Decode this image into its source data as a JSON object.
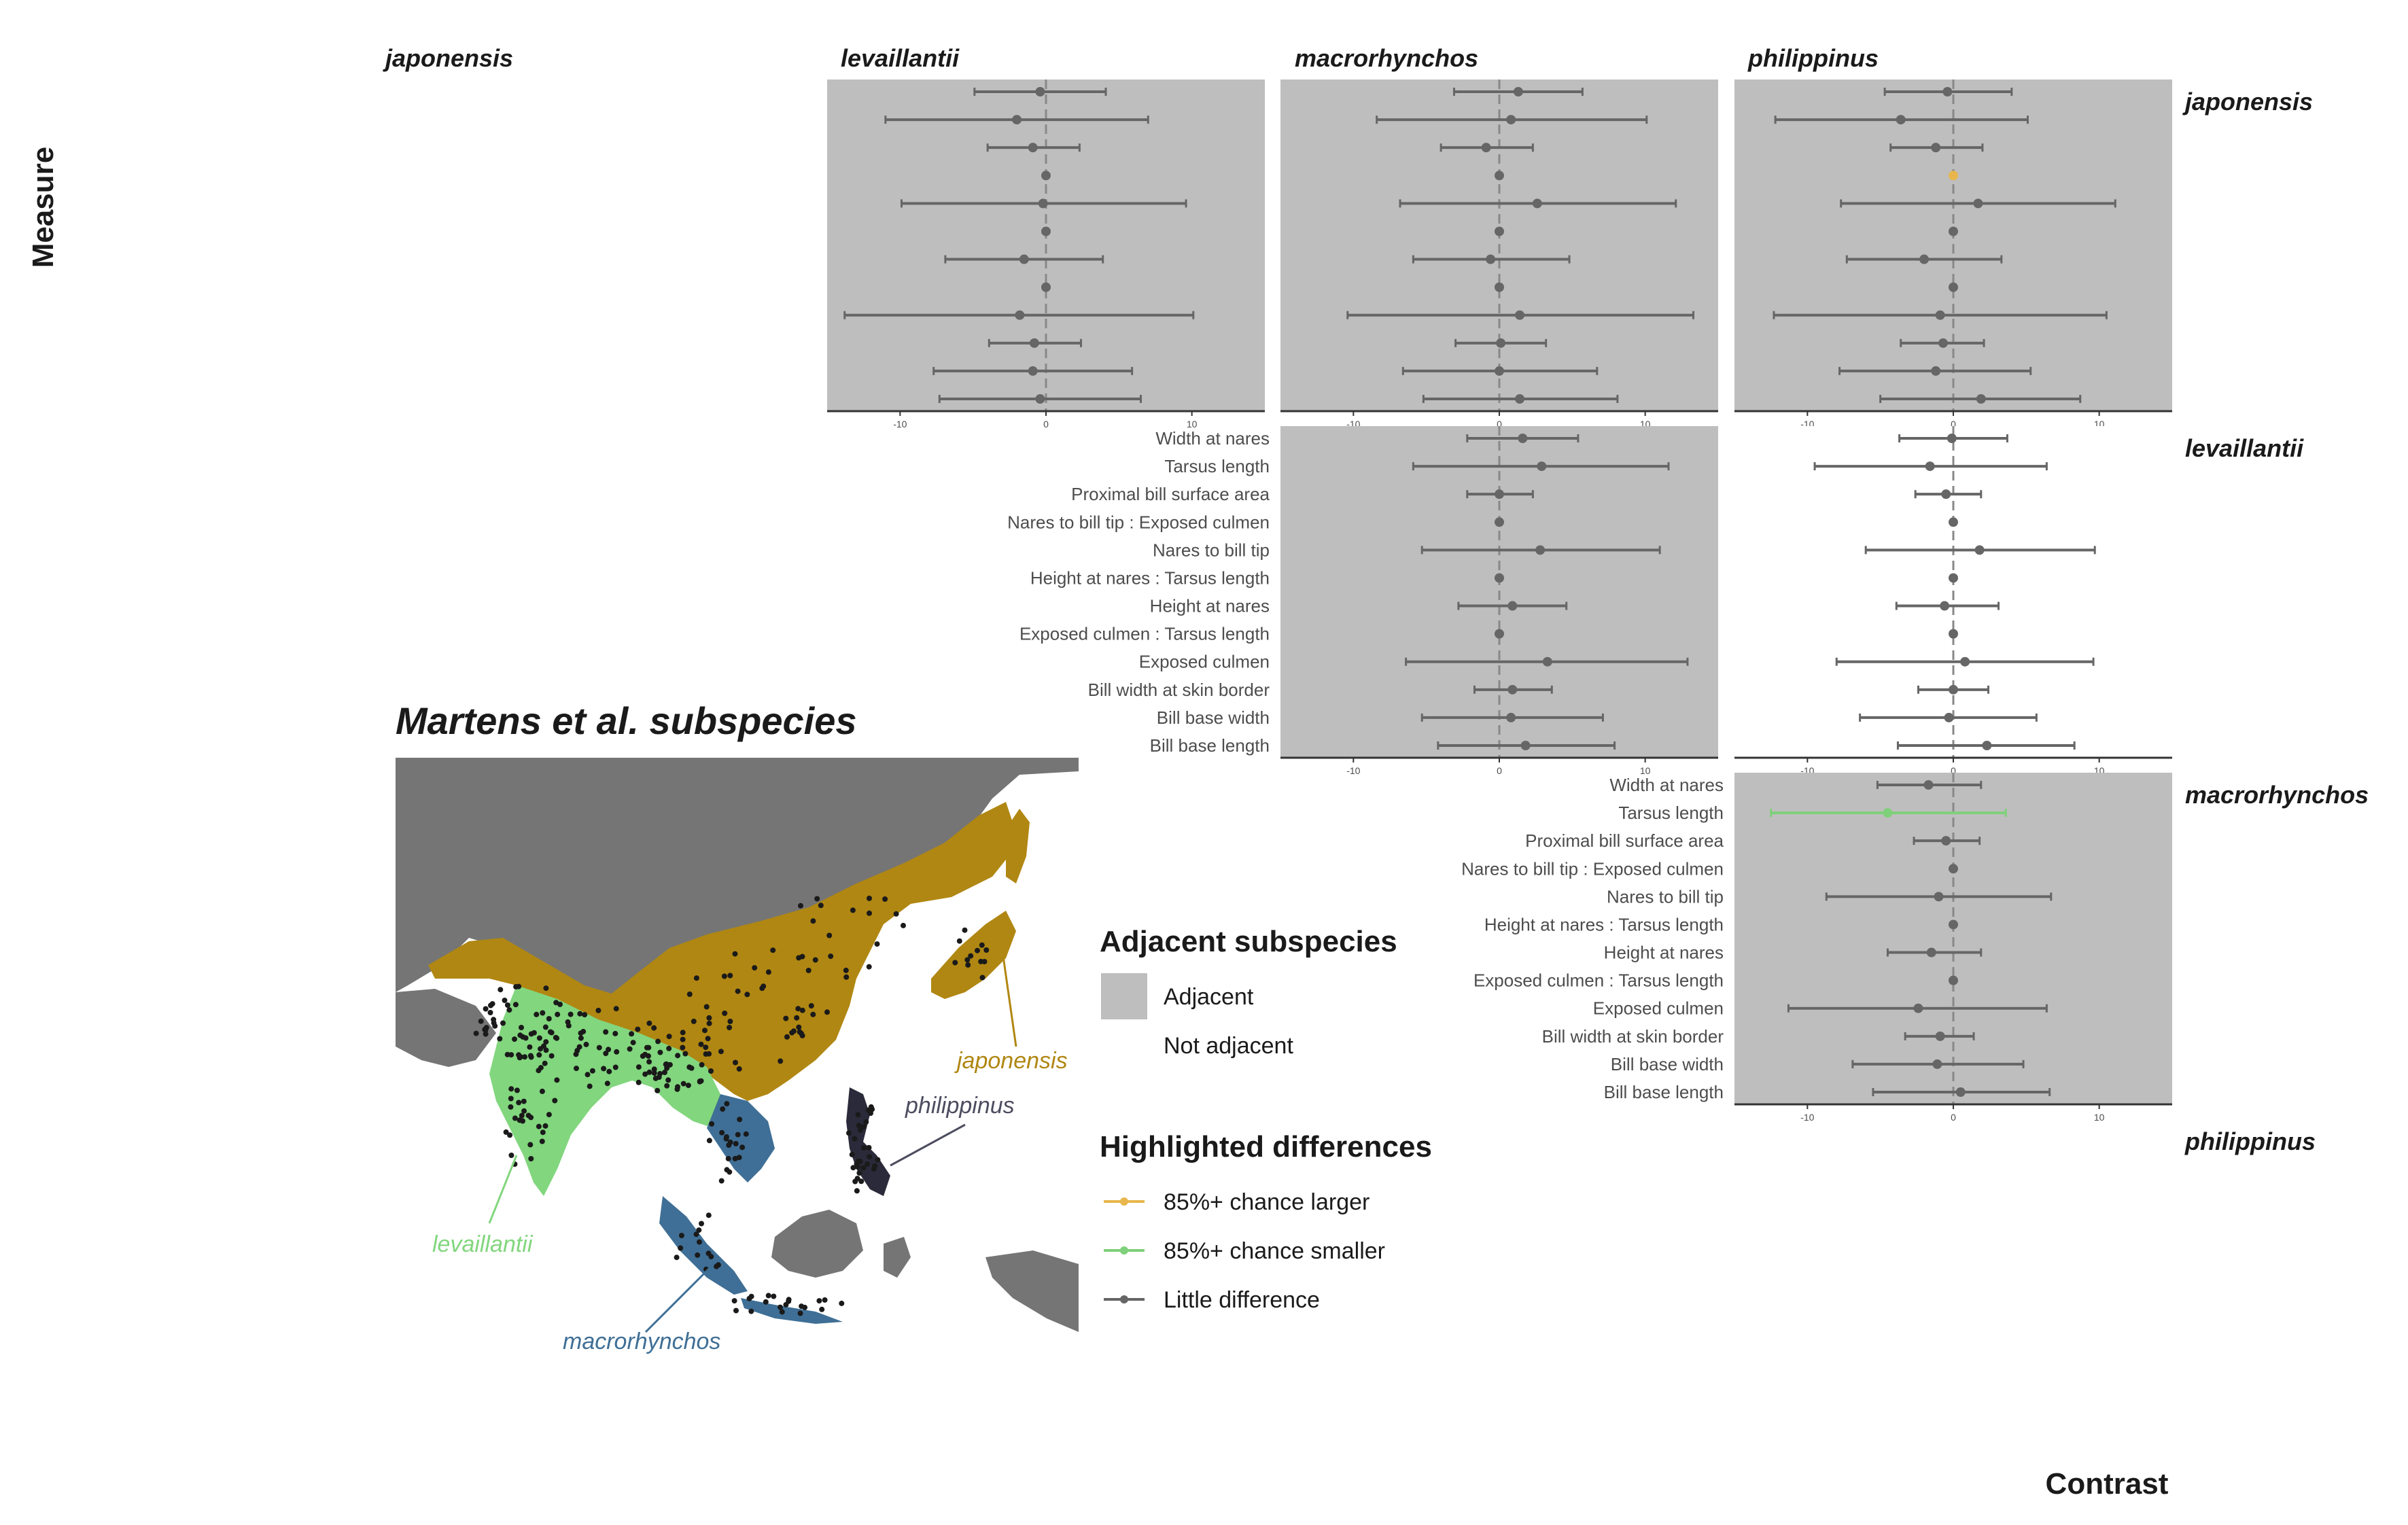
{
  "chart_data": {
    "type": "scatter",
    "subtype": "forest-plot-facet-matrix",
    "xlabel": "Contrast",
    "ylabel": "Measure",
    "xlim": [
      -15,
      15
    ],
    "xticks": [
      "-10",
      "0",
      "10"
    ],
    "reference_line_x": 0,
    "column_facets": [
      "japonensis",
      "levaillantii",
      "macrorhynchos",
      "philippinus"
    ],
    "row_facets": [
      "japonensis",
      "levaillantii",
      "macrorhynchos",
      "philippinus"
    ],
    "measures": [
      "Width at nares",
      "Tarsus length",
      "Proximal bill surface area",
      "Nares to bill tip : Exposed culmen",
      "Nares to bill tip",
      "Height at nares : Tarsus length",
      "Height at nares",
      "Exposed culmen : Tarsus length",
      "Exposed culmen",
      "Bill width at skin border",
      "Bill base width",
      "Bill base length"
    ],
    "legend_adjacent": {
      "title": "Adjacent subspecies",
      "items": [
        {
          "label": "Adjacent",
          "fill": "#bebebe"
        },
        {
          "label": "Not adjacent",
          "fill": "#ffffff"
        }
      ]
    },
    "legend_highlight": {
      "title": "Highlighted differences",
      "items": [
        {
          "label": "85%+ chance larger",
          "color": "#e8b64c"
        },
        {
          "label": "85%+ chance smaller",
          "color": "#7fd07a"
        },
        {
          "label": "Little difference",
          "color": "#666666"
        }
      ]
    },
    "panels": [
      {
        "row": "japonensis",
        "col": "levaillantii",
        "adjacent": true,
        "show_measure_labels": false,
        "estimates": [
          {
            "est": -0.4,
            "lo": -4.9,
            "hi": 4.1,
            "status": "none"
          },
          {
            "est": -2.0,
            "lo": -11.0,
            "hi": 7.0,
            "status": "none"
          },
          {
            "est": -0.9,
            "lo": -4.0,
            "hi": 2.3,
            "status": "none"
          },
          {
            "est": 0.0,
            "lo": 0.0,
            "hi": 0.0,
            "status": "none"
          },
          {
            "est": -0.2,
            "lo": -9.9,
            "hi": 9.6,
            "status": "none"
          },
          {
            "est": 0.0,
            "lo": 0.0,
            "hi": 0.0,
            "status": "none"
          },
          {
            "est": -1.5,
            "lo": -6.9,
            "hi": 3.9,
            "status": "none"
          },
          {
            "est": 0.0,
            "lo": 0.0,
            "hi": 0.0,
            "status": "none"
          },
          {
            "est": -1.8,
            "lo": -13.8,
            "hi": 10.1,
            "status": "none"
          },
          {
            "est": -0.8,
            "lo": -3.9,
            "hi": 2.4,
            "status": "none"
          },
          {
            "est": -0.9,
            "lo": -7.7,
            "hi": 5.9,
            "status": "none"
          },
          {
            "est": -0.4,
            "lo": -7.3,
            "hi": 6.5,
            "status": "none"
          }
        ]
      },
      {
        "row": "japonensis",
        "col": "macrorhynchos",
        "adjacent": true,
        "show_measure_labels": false,
        "estimates": [
          {
            "est": 1.3,
            "lo": -3.1,
            "hi": 5.7,
            "status": "none"
          },
          {
            "est": 0.8,
            "lo": -8.4,
            "hi": 10.1,
            "status": "none"
          },
          {
            "est": -0.9,
            "lo": -4.0,
            "hi": 2.3,
            "status": "none"
          },
          {
            "est": 0.0,
            "lo": 0.0,
            "hi": 0.0,
            "status": "none"
          },
          {
            "est": 2.6,
            "lo": -6.8,
            "hi": 12.1,
            "status": "none"
          },
          {
            "est": 0.0,
            "lo": 0.0,
            "hi": 0.0,
            "status": "none"
          },
          {
            "est": -0.6,
            "lo": -5.9,
            "hi": 4.8,
            "status": "none"
          },
          {
            "est": 0.0,
            "lo": 0.0,
            "hi": 0.0,
            "status": "none"
          },
          {
            "est": 1.4,
            "lo": -10.4,
            "hi": 13.3,
            "status": "none"
          },
          {
            "est": 0.1,
            "lo": -3.0,
            "hi": 3.2,
            "status": "none"
          },
          {
            "est": 0.0,
            "lo": -6.6,
            "hi": 6.7,
            "status": "none"
          },
          {
            "est": 1.4,
            "lo": -5.2,
            "hi": 8.1,
            "status": "none"
          }
        ]
      },
      {
        "row": "japonensis",
        "col": "philippinus",
        "adjacent": true,
        "show_measure_labels": false,
        "estimates": [
          {
            "est": -0.4,
            "lo": -4.7,
            "hi": 4.0,
            "status": "none"
          },
          {
            "est": -3.6,
            "lo": -12.2,
            "hi": 5.1,
            "status": "none"
          },
          {
            "est": -1.2,
            "lo": -4.3,
            "hi": 2.0,
            "status": "none"
          },
          {
            "est": 0.0,
            "lo": 0.0,
            "hi": 0.0,
            "status": "larger"
          },
          {
            "est": 1.7,
            "lo": -7.7,
            "hi": 11.1,
            "status": "none"
          },
          {
            "est": 0.0,
            "lo": 0.0,
            "hi": 0.0,
            "status": "none"
          },
          {
            "est": -2.0,
            "lo": -7.3,
            "hi": 3.3,
            "status": "none"
          },
          {
            "est": 0.0,
            "lo": 0.0,
            "hi": 0.0,
            "status": "none"
          },
          {
            "est": -0.9,
            "lo": -12.3,
            "hi": 10.5,
            "status": "none"
          },
          {
            "est": -0.7,
            "lo": -3.6,
            "hi": 2.1,
            "status": "none"
          },
          {
            "est": -1.2,
            "lo": -7.8,
            "hi": 5.3,
            "status": "none"
          },
          {
            "est": 1.9,
            "lo": -5.0,
            "hi": 8.7,
            "status": "none"
          }
        ]
      },
      {
        "row": "levaillantii",
        "col": "macrorhynchos",
        "adjacent": true,
        "show_measure_labels": true,
        "estimates": [
          {
            "est": 1.6,
            "lo": -2.2,
            "hi": 5.4,
            "status": "none"
          },
          {
            "est": 2.9,
            "lo": -5.9,
            "hi": 11.6,
            "status": "none"
          },
          {
            "est": 0.0,
            "lo": -2.2,
            "hi": 2.3,
            "status": "none"
          },
          {
            "est": 0.0,
            "lo": 0.0,
            "hi": 0.0,
            "status": "none"
          },
          {
            "est": 2.8,
            "lo": -5.3,
            "hi": 11.0,
            "status": "none"
          },
          {
            "est": 0.0,
            "lo": 0.0,
            "hi": 0.0,
            "status": "none"
          },
          {
            "est": 0.9,
            "lo": -2.8,
            "hi": 4.6,
            "status": "none"
          },
          {
            "est": 0.0,
            "lo": 0.0,
            "hi": 0.0,
            "status": "none"
          },
          {
            "est": 3.3,
            "lo": -6.4,
            "hi": 12.9,
            "status": "none"
          },
          {
            "est": 0.9,
            "lo": -1.7,
            "hi": 3.6,
            "status": "none"
          },
          {
            "est": 0.8,
            "lo": -5.3,
            "hi": 7.1,
            "status": "none"
          },
          {
            "est": 1.8,
            "lo": -4.2,
            "hi": 7.9,
            "status": "none"
          }
        ]
      },
      {
        "row": "levaillantii",
        "col": "philippinus",
        "adjacent": false,
        "show_measure_labels": false,
        "estimates": [
          {
            "est": -0.1,
            "lo": -3.7,
            "hi": 3.7,
            "status": "none"
          },
          {
            "est": -1.6,
            "lo": -9.5,
            "hi": 6.4,
            "status": "none"
          },
          {
            "est": -0.5,
            "lo": -2.6,
            "hi": 1.9,
            "status": "none"
          },
          {
            "est": 0.0,
            "lo": 0.0,
            "hi": 0.0,
            "status": "none"
          },
          {
            "est": 1.8,
            "lo": -6.0,
            "hi": 9.7,
            "status": "none"
          },
          {
            "est": 0.0,
            "lo": 0.0,
            "hi": 0.0,
            "status": "none"
          },
          {
            "est": -0.6,
            "lo": -3.9,
            "hi": 3.1,
            "status": "none"
          },
          {
            "est": 0.0,
            "lo": 0.0,
            "hi": 0.0,
            "status": "none"
          },
          {
            "est": 0.8,
            "lo": -8.0,
            "hi": 9.6,
            "status": "none"
          },
          {
            "est": 0.0,
            "lo": -2.4,
            "hi": 2.4,
            "status": "none"
          },
          {
            "est": -0.3,
            "lo": -6.4,
            "hi": 5.7,
            "status": "none"
          },
          {
            "est": 2.3,
            "lo": -3.8,
            "hi": 8.3,
            "status": "none"
          }
        ]
      },
      {
        "row": "macrorhynchos",
        "col": "philippinus",
        "adjacent": true,
        "show_measure_labels": true,
        "estimates": [
          {
            "est": -1.7,
            "lo": -5.2,
            "hi": 1.9,
            "status": "none"
          },
          {
            "est": -4.5,
            "lo": -12.5,
            "hi": 3.6,
            "status": "smaller"
          },
          {
            "est": -0.5,
            "lo": -2.7,
            "hi": 1.8,
            "status": "none"
          },
          {
            "est": 0.0,
            "lo": 0.0,
            "hi": 0.0,
            "status": "none"
          },
          {
            "est": -1.0,
            "lo": -8.7,
            "hi": 6.7,
            "status": "none"
          },
          {
            "est": 0.0,
            "lo": 0.0,
            "hi": 0.0,
            "status": "none"
          },
          {
            "est": -1.5,
            "lo": -4.5,
            "hi": 1.9,
            "status": "none"
          },
          {
            "est": 0.0,
            "lo": 0.0,
            "hi": 0.0,
            "status": "none"
          },
          {
            "est": -2.4,
            "lo": -11.3,
            "hi": 6.4,
            "status": "none"
          },
          {
            "est": -0.9,
            "lo": -3.3,
            "hi": 1.4,
            "status": "none"
          },
          {
            "est": -1.1,
            "lo": -6.9,
            "hi": 4.8,
            "status": "none"
          },
          {
            "est": 0.5,
            "lo": -5.5,
            "hi": 6.6,
            "status": "none"
          }
        ]
      }
    ]
  },
  "map": {
    "title": "Martens et al. subspecies",
    "labels": {
      "japonensis": "japonensis",
      "levaillantii": "levaillantii",
      "macrorhynchos": "macrorhynchos",
      "philippinus": "philippinus"
    },
    "colors": {
      "japonensis": "#b08712",
      "levaillantii": "#82d67e",
      "macrorhynchos": "#3f6f96",
      "philippinus": "#2a2a3a",
      "land": "#757575",
      "sea": "#ffffff",
      "points": "#1a1a1a"
    }
  }
}
